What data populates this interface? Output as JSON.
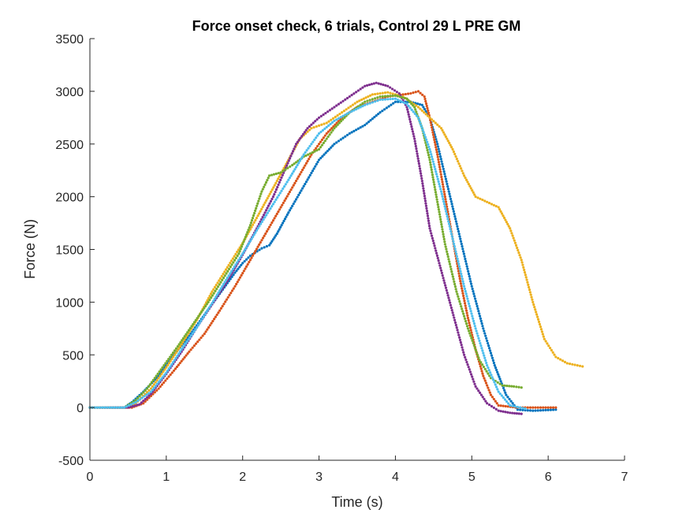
{
  "chart_data": {
    "type": "scatter",
    "title": "Force onset check, 6 trials, Control 29 L PRE GM",
    "xlabel": "Time (s)",
    "ylabel": "Force (N)",
    "xlim": [
      0,
      7
    ],
    "ylim": [
      -500,
      3500
    ],
    "xticks": [
      "0",
      "1",
      "2",
      "3",
      "4",
      "5",
      "6",
      "7"
    ],
    "yticks": [
      "-500",
      "0",
      "500",
      "1000",
      "1500",
      "2000",
      "2500",
      "3000",
      "3500"
    ],
    "grid": false,
    "series": [
      {
        "color": "#0072BD",
        "points": [
          [
            0,
            0
          ],
          [
            0.45,
            0
          ],
          [
            0.55,
            50
          ],
          [
            0.7,
            150
          ],
          [
            0.9,
            300
          ],
          [
            1.1,
            500
          ],
          [
            1.3,
            680
          ],
          [
            1.5,
            880
          ],
          [
            1.7,
            1080
          ],
          [
            1.9,
            1280
          ],
          [
            2.0,
            1370
          ],
          [
            2.1,
            1440
          ],
          [
            2.25,
            1510
          ],
          [
            2.35,
            1540
          ],
          [
            2.45,
            1650
          ],
          [
            2.6,
            1850
          ],
          [
            2.8,
            2100
          ],
          [
            3.0,
            2350
          ],
          [
            3.2,
            2500
          ],
          [
            3.4,
            2600
          ],
          [
            3.6,
            2680
          ],
          [
            3.8,
            2800
          ],
          [
            4.0,
            2900
          ],
          [
            4.2,
            2900
          ],
          [
            4.35,
            2870
          ],
          [
            4.45,
            2750
          ],
          [
            4.55,
            2500
          ],
          [
            4.7,
            2050
          ],
          [
            4.85,
            1600
          ],
          [
            5.0,
            1150
          ],
          [
            5.15,
            750
          ],
          [
            5.3,
            400
          ],
          [
            5.45,
            120
          ],
          [
            5.6,
            -20
          ],
          [
            5.8,
            -30
          ],
          [
            6.1,
            -20
          ]
        ]
      },
      {
        "color": "#D95319",
        "points": [
          [
            0,
            0
          ],
          [
            0.55,
            0
          ],
          [
            0.7,
            40
          ],
          [
            0.9,
            180
          ],
          [
            1.1,
            350
          ],
          [
            1.3,
            530
          ],
          [
            1.5,
            700
          ],
          [
            1.7,
            920
          ],
          [
            1.9,
            1150
          ],
          [
            2.1,
            1400
          ],
          [
            2.3,
            1650
          ],
          [
            2.5,
            1900
          ],
          [
            2.7,
            2150
          ],
          [
            2.9,
            2400
          ],
          [
            3.1,
            2600
          ],
          [
            3.3,
            2750
          ],
          [
            3.5,
            2850
          ],
          [
            3.7,
            2900
          ],
          [
            3.9,
            2950
          ],
          [
            4.1,
            2970
          ],
          [
            4.2,
            2980
          ],
          [
            4.3,
            3000
          ],
          [
            4.38,
            2950
          ],
          [
            4.45,
            2750
          ],
          [
            4.55,
            2400
          ],
          [
            4.65,
            2000
          ],
          [
            4.75,
            1600
          ],
          [
            4.85,
            1200
          ],
          [
            4.95,
            850
          ],
          [
            5.05,
            550
          ],
          [
            5.15,
            300
          ],
          [
            5.25,
            120
          ],
          [
            5.35,
            20
          ],
          [
            5.6,
            0
          ],
          [
            6.1,
            0
          ]
        ]
      },
      {
        "color": "#EDB120",
        "points": [
          [
            0,
            0
          ],
          [
            0.45,
            0
          ],
          [
            0.6,
            40
          ],
          [
            0.8,
            180
          ],
          [
            1.0,
            380
          ],
          [
            1.2,
            600
          ],
          [
            1.4,
            830
          ],
          [
            1.6,
            1100
          ],
          [
            1.8,
            1330
          ],
          [
            2.0,
            1560
          ],
          [
            2.2,
            1820
          ],
          [
            2.45,
            2150
          ],
          [
            2.6,
            2350
          ],
          [
            2.75,
            2550
          ],
          [
            2.9,
            2650
          ],
          [
            3.1,
            2700
          ],
          [
            3.3,
            2800
          ],
          [
            3.5,
            2900
          ],
          [
            3.7,
            2970
          ],
          [
            3.9,
            2990
          ],
          [
            4.1,
            2950
          ],
          [
            4.3,
            2850
          ],
          [
            4.45,
            2750
          ],
          [
            4.6,
            2650
          ],
          [
            4.75,
            2450
          ],
          [
            4.9,
            2200
          ],
          [
            5.05,
            2000
          ],
          [
            5.2,
            1950
          ],
          [
            5.35,
            1900
          ],
          [
            5.5,
            1700
          ],
          [
            5.65,
            1400
          ],
          [
            5.8,
            1000
          ],
          [
            5.95,
            650
          ],
          [
            6.1,
            480
          ],
          [
            6.25,
            420
          ],
          [
            6.45,
            390
          ]
        ]
      },
      {
        "color": "#7E2F8E",
        "points": [
          [
            0,
            0
          ],
          [
            0.5,
            0
          ],
          [
            0.65,
            30
          ],
          [
            0.8,
            130
          ],
          [
            1.0,
            320
          ],
          [
            1.2,
            530
          ],
          [
            1.4,
            760
          ],
          [
            1.6,
            980
          ],
          [
            1.8,
            1200
          ],
          [
            2.0,
            1450
          ],
          [
            2.2,
            1720
          ],
          [
            2.4,
            2000
          ],
          [
            2.55,
            2250
          ],
          [
            2.7,
            2500
          ],
          [
            2.85,
            2650
          ],
          [
            3.0,
            2750
          ],
          [
            3.2,
            2850
          ],
          [
            3.4,
            2950
          ],
          [
            3.6,
            3050
          ],
          [
            3.75,
            3080
          ],
          [
            3.9,
            3050
          ],
          [
            4.05,
            2980
          ],
          [
            4.15,
            2850
          ],
          [
            4.25,
            2550
          ],
          [
            4.35,
            2150
          ],
          [
            4.45,
            1700
          ],
          [
            4.6,
            1300
          ],
          [
            4.75,
            900
          ],
          [
            4.9,
            500
          ],
          [
            5.05,
            200
          ],
          [
            5.2,
            40
          ],
          [
            5.35,
            -30
          ],
          [
            5.5,
            -50
          ],
          [
            5.65,
            -60
          ]
        ]
      },
      {
        "color": "#77AC30",
        "points": [
          [
            0,
            0
          ],
          [
            0.45,
            0
          ],
          [
            0.6,
            70
          ],
          [
            0.75,
            180
          ],
          [
            0.95,
            380
          ],
          [
            1.15,
            580
          ],
          [
            1.35,
            790
          ],
          [
            1.55,
            1000
          ],
          [
            1.75,
            1230
          ],
          [
            1.95,
            1460
          ],
          [
            2.1,
            1730
          ],
          [
            2.25,
            2050
          ],
          [
            2.35,
            2200
          ],
          [
            2.5,
            2230
          ],
          [
            2.65,
            2300
          ],
          [
            2.8,
            2380
          ],
          [
            3.0,
            2450
          ],
          [
            3.2,
            2650
          ],
          [
            3.4,
            2800
          ],
          [
            3.6,
            2900
          ],
          [
            3.8,
            2950
          ],
          [
            4.0,
            2960
          ],
          [
            4.15,
            2930
          ],
          [
            4.25,
            2850
          ],
          [
            4.35,
            2650
          ],
          [
            4.45,
            2350
          ],
          [
            4.55,
            1950
          ],
          [
            4.65,
            1550
          ],
          [
            4.8,
            1100
          ],
          [
            4.95,
            750
          ],
          [
            5.1,
            450
          ],
          [
            5.25,
            280
          ],
          [
            5.4,
            210
          ],
          [
            5.55,
            200
          ],
          [
            5.65,
            190
          ]
        ]
      },
      {
        "color": "#4DBEEE",
        "points": [
          [
            0,
            0
          ],
          [
            0.45,
            0
          ],
          [
            0.6,
            50
          ],
          [
            0.8,
            150
          ],
          [
            1.0,
            330
          ],
          [
            1.2,
            550
          ],
          [
            1.4,
            760
          ],
          [
            1.6,
            990
          ],
          [
            1.8,
            1230
          ],
          [
            2.0,
            1460
          ],
          [
            2.2,
            1700
          ],
          [
            2.4,
            1930
          ],
          [
            2.6,
            2160
          ],
          [
            2.8,
            2400
          ],
          [
            3.0,
            2600
          ],
          [
            3.2,
            2720
          ],
          [
            3.4,
            2800
          ],
          [
            3.6,
            2870
          ],
          [
            3.8,
            2920
          ],
          [
            4.0,
            2930
          ],
          [
            4.15,
            2880
          ],
          [
            4.3,
            2750
          ],
          [
            4.45,
            2450
          ],
          [
            4.6,
            2050
          ],
          [
            4.75,
            1600
          ],
          [
            4.9,
            1150
          ],
          [
            5.05,
            750
          ],
          [
            5.2,
            400
          ],
          [
            5.35,
            150
          ],
          [
            5.5,
            20
          ],
          [
            5.7,
            -10
          ]
        ]
      }
    ]
  }
}
